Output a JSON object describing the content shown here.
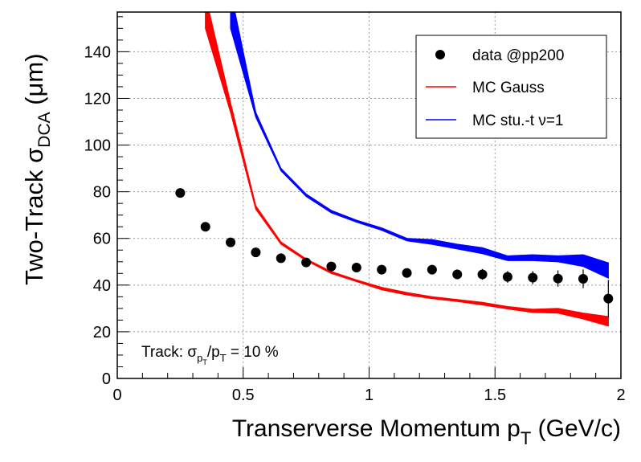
{
  "chart_data": {
    "type": "scatter",
    "title": "",
    "ylabel": {
      "main": "Two-Track σ",
      "subscript": "DCA",
      "unit": " (μm)"
    },
    "xlabel": {
      "main": "Transerverse Momentum p",
      "subscript": "T",
      "unit": " (GeV/c)"
    },
    "xlim": [
      0,
      2
    ],
    "ylim": [
      0,
      157
    ],
    "grid": true,
    "xticks": [
      0,
      0.5,
      1,
      1.5,
      2
    ],
    "xtick_labels": [
      "0",
      "0.5",
      "1",
      "1.5",
      "2"
    ],
    "yticks": [
      0,
      20,
      40,
      60,
      80,
      100,
      120,
      140
    ],
    "ytick_labels": [
      "0",
      "20",
      "40",
      "60",
      "80",
      "100",
      "120",
      "140"
    ],
    "legend_position": "top-right",
    "annotation": {
      "prefix": "Track: ",
      "sigma": "σ",
      "p_letter": "p",
      "t_letter": "T",
      "rest": " = 10 %"
    },
    "series": [
      {
        "name": "data @pp200",
        "kind": "points",
        "color": "#000000",
        "points": [
          {
            "x": 0.25,
            "y": 79.5,
            "err": 1.2
          },
          {
            "x": 0.35,
            "y": 65.0,
            "err": 1.2
          },
          {
            "x": 0.45,
            "y": 58.3,
            "err": 1.3
          },
          {
            "x": 0.55,
            "y": 54.0,
            "err": 1.3
          },
          {
            "x": 0.65,
            "y": 51.5,
            "err": 1.5
          },
          {
            "x": 0.75,
            "y": 49.7,
            "err": 1.5
          },
          {
            "x": 0.85,
            "y": 48.0,
            "err": 1.6
          },
          {
            "x": 0.95,
            "y": 47.5,
            "err": 1.7
          },
          {
            "x": 1.05,
            "y": 46.6,
            "err": 1.8
          },
          {
            "x": 1.15,
            "y": 45.2,
            "err": 1.9
          },
          {
            "x": 1.25,
            "y": 46.6,
            "err": 2.0
          },
          {
            "x": 1.35,
            "y": 44.6,
            "err": 2.1
          },
          {
            "x": 1.45,
            "y": 44.6,
            "err": 2.3
          },
          {
            "x": 1.55,
            "y": 43.5,
            "err": 2.5
          },
          {
            "x": 1.65,
            "y": 43.2,
            "err": 2.8
          },
          {
            "x": 1.75,
            "y": 42.8,
            "err": 3.5
          },
          {
            "x": 1.85,
            "y": 42.7,
            "err": 4.0
          },
          {
            "x": 1.95,
            "y": 34.2,
            "err": 8.0
          }
        ]
      },
      {
        "name": "MC Gauss",
        "kind": "band",
        "color": "#ff0000",
        "x": [
          0.35,
          0.45,
          0.55,
          0.65,
          0.75,
          0.85,
          0.95,
          1.05,
          1.15,
          1.25,
          1.35,
          1.45,
          1.55,
          1.65,
          1.75,
          1.85,
          1.95
        ],
        "low": [
          150,
          114,
          72.5,
          57.5,
          50.5,
          45.0,
          41.5,
          38.0,
          35.8,
          34.2,
          33.0,
          31.5,
          29.8,
          28.3,
          28.0,
          25.5,
          22.5
        ],
        "high": [
          164,
          118,
          74.0,
          58.5,
          51.2,
          45.8,
          42.2,
          39.0,
          36.8,
          35.0,
          33.8,
          32.6,
          30.8,
          29.6,
          30.0,
          28.0,
          26.5
        ]
      },
      {
        "name": "MC stu.-t ν=1",
        "kind": "band",
        "color": "#0000ff",
        "x": [
          0.45,
          0.55,
          0.65,
          0.75,
          0.85,
          0.95,
          1.05,
          1.15,
          1.25,
          1.35,
          1.45,
          1.55,
          1.65,
          1.75,
          1.85,
          1.95
        ],
        "low": [
          150,
          112.0,
          89.0,
          78.0,
          71.0,
          67.0,
          63.5,
          59.0,
          57.5,
          55.5,
          53.5,
          50.5,
          50.5,
          50.0,
          48.0,
          43.0
        ],
        "high": [
          166,
          114.0,
          90.0,
          79.0,
          72.0,
          67.8,
          64.5,
          60.0,
          59.5,
          57.5,
          56.0,
          52.5,
          53.0,
          52.5,
          53.0,
          49.5
        ]
      }
    ]
  }
}
